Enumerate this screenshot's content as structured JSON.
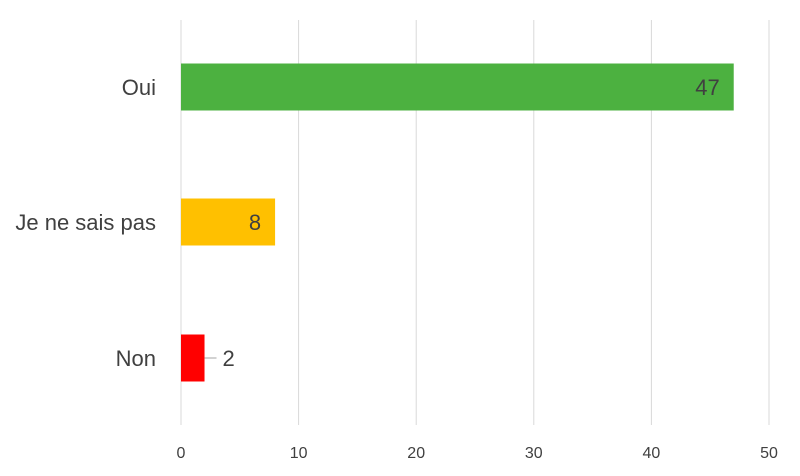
{
  "chart_data": {
    "type": "bar",
    "orientation": "horizontal",
    "categories": [
      "Oui",
      "Je ne sais pas",
      "Non"
    ],
    "values": [
      47,
      8,
      2
    ],
    "colors": [
      "#4cb140",
      "#ffc000",
      "#ff0000"
    ],
    "xlim": [
      0,
      50
    ],
    "xticks": [
      0,
      10,
      20,
      30,
      40,
      50
    ],
    "grid": true,
    "title": "",
    "xlabel": "",
    "ylabel": ""
  }
}
